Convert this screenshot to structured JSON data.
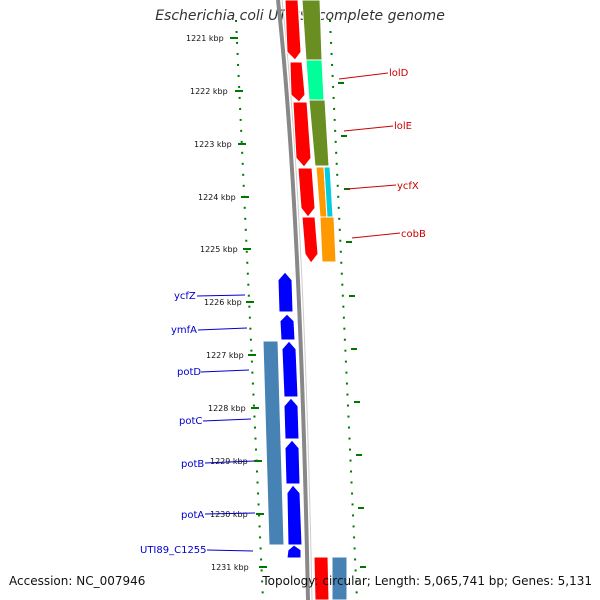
{
  "title": "Escherichia coli UTI89, complete genome",
  "footer": {
    "accession": "Accession: NC_007946",
    "summary": "Topology: circular; Length: 5,065,741 bp; Genes: 5,131"
  },
  "ticks": [
    "1221 kbp",
    "1222 kbp",
    "1223 kbp",
    "1224 kbp",
    "1225 kbp",
    "1226 kbp",
    "1227 kbp",
    "1228 kbp",
    "1229 kbp",
    "1230 kbp",
    "1231 kbp"
  ],
  "genes_right": [
    "lolD",
    "lolE",
    "ycfX",
    "cobB"
  ],
  "genes_left": [
    "ycfZ",
    "ymfA",
    "potD",
    "potC",
    "potB",
    "potA",
    "UTI89_C1255"
  ],
  "colors": {
    "forward_cds": "#ff0000",
    "reverse_cds": "#0000ff",
    "lolD_cog": "#00ff99",
    "lolE_cog": "#6b8e23",
    "ycfX_cog": "#00ccdd",
    "cobB_cog": "#ff9900",
    "pot_operon_cog": "#4682b4",
    "backbone": "#888888",
    "tick": "#007700"
  }
}
